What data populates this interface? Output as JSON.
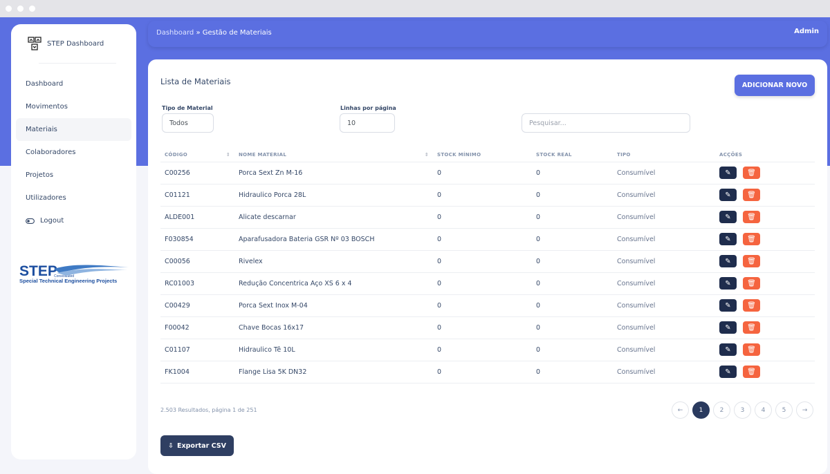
{
  "brand": {
    "name": "STEP Dashboard",
    "logo_text": "STEP Consolidated Special Technical Engineering Projects"
  },
  "sidebar": {
    "items": [
      {
        "label": "Dashboard"
      },
      {
        "label": "Movimentos"
      },
      {
        "label": "Materiais",
        "active": true
      },
      {
        "label": "Colaboradores"
      },
      {
        "label": "Projetos"
      },
      {
        "label": "Utilizadores"
      },
      {
        "label": "Logout",
        "icon": "toggle-icon"
      }
    ]
  },
  "header": {
    "breadcrumb_root": "Dashboard",
    "separator": "»",
    "breadcrumb_current": "Gestão de Materiais",
    "user": "Admin"
  },
  "main": {
    "title": "Lista de Materiais",
    "add_label": "ADICIONAR NOVO",
    "filters": {
      "type_label": "Tipo de Material",
      "type_value": "Todos",
      "rows_label": "Linhas por página",
      "rows_value": "10",
      "search_placeholder": "Pesquisar..."
    },
    "columns": [
      "CÓDIGO",
      "NOME MATERIAL",
      "STOCK MÍNIMO",
      "STOCK REAL",
      "TIPO",
      "ACÇÕES"
    ],
    "rows": [
      [
        "C00256",
        "Porca Sext Zn M-16",
        "0",
        "0",
        "Consumível"
      ],
      [
        "C01121",
        "Hidraulico Porca 28L",
        "0",
        "0",
        "Consumível"
      ],
      [
        "ALDE001",
        "Alicate descarnar",
        "0",
        "0",
        "Consumível"
      ],
      [
        "F030854",
        "Aparafusadora Bateria GSR Nº 03 BOSCH",
        "0",
        "0",
        "Consumível"
      ],
      [
        "C00056",
        "Rivelex",
        "0",
        "0",
        "Consumível"
      ],
      [
        "RC01003",
        "Redução Concentrica Aço XS 6 x 4",
        "0",
        "0",
        "Consumível"
      ],
      [
        "C00429",
        "Porca Sext Inox M-04",
        "0",
        "0",
        "Consumível"
      ],
      [
        "F00042",
        "Chave Bocas 16x17",
        "0",
        "0",
        "Consumível"
      ],
      [
        "C01107",
        "Hidraulico Tê 10L",
        "0",
        "0",
        "Consumível"
      ],
      [
        "FK1004",
        "Flange Lisa 5K DN32",
        "0",
        "0",
        "Consumível"
      ]
    ],
    "results": "2.503 Resultados, página 1 de 251",
    "pages": [
      "1",
      "2",
      "3",
      "4",
      "5"
    ],
    "prev": "←",
    "next": "→",
    "export_label": "Exportar CSV"
  },
  "colors": {
    "primary": "#5b6fe1",
    "edit": "#1f2d4d",
    "delete": "#f5643f"
  }
}
